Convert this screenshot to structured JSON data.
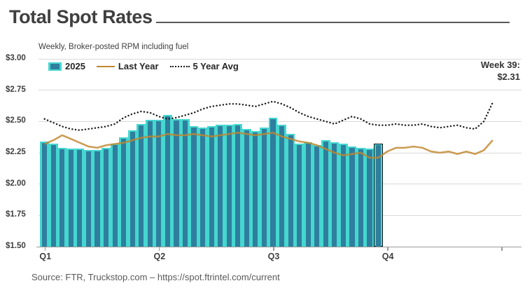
{
  "header": {
    "title": "Total Spot Rates"
  },
  "subtitle": "Weekly, Broker-posted RPM including fuel",
  "legend": {
    "items": [
      {
        "label": "2025",
        "swatch": "bar-swatch"
      },
      {
        "label": "Last Year",
        "swatch": "line-swatch"
      },
      {
        "label": "5 Year Avg",
        "swatch": "dotted-line-swatch"
      }
    ]
  },
  "callout": {
    "week_label": "Week 39:",
    "value": "$2.31"
  },
  "source": "Source: FTR, Truckstop.com – https://spot.ftrintel.com/current",
  "colors": {
    "bar": "#2F7E9D",
    "halo": "#45D7D0",
    "lastyear": "#C1882F",
    "fiveyr": "#1A1A1A",
    "grid": "#D9D9D9",
    "axis": "#9B9B9B"
  },
  "chart_data": {
    "type": "bar",
    "title": "Total Spot Rates",
    "subtitle": "Weekly, Broker-posted RPM including fuel",
    "x_unit": "week of year",
    "ylim": [
      1.5,
      3.0
    ],
    "grid": true,
    "legend_position": "top-left",
    "y_ticks": [
      {
        "label": "$3.00",
        "value": 3.0
      },
      {
        "label": "$2.75",
        "value": 2.75
      },
      {
        "label": "$2.50",
        "value": 2.5
      },
      {
        "label": "$2.25",
        "value": 2.25
      },
      {
        "label": "$2.00",
        "value": 2.0
      },
      {
        "label": "$1.75",
        "value": 1.75
      },
      {
        "label": "$1.50",
        "value": 1.5
      }
    ],
    "x_ticks": [
      {
        "label": "Q1",
        "week": 1
      },
      {
        "label": "Q2",
        "week": 14
      },
      {
        "label": "Q3",
        "week": 27
      },
      {
        "label": "Q4",
        "week": 40
      },
      {
        "label": "",
        "week": 53
      }
    ],
    "annotation": {
      "label": "Week 39:",
      "value": "$2.31",
      "week": 39
    },
    "series": [
      {
        "name": "2025",
        "type": "bar",
        "weeks": "1-39",
        "values": [
          2.33,
          2.31,
          2.28,
          2.27,
          2.27,
          2.26,
          2.26,
          2.28,
          2.31,
          2.36,
          2.42,
          2.47,
          2.5,
          2.5,
          2.54,
          2.51,
          2.51,
          2.45,
          2.44,
          2.45,
          2.46,
          2.46,
          2.47,
          2.43,
          2.41,
          2.44,
          2.52,
          2.46,
          2.39,
          2.31,
          2.32,
          2.3,
          2.34,
          2.32,
          2.31,
          2.29,
          2.28,
          2.27,
          2.31
        ]
      },
      {
        "name": "Last Year",
        "type": "line",
        "weeks": "1-52",
        "values": [
          2.32,
          2.35,
          2.39,
          2.36,
          2.33,
          2.3,
          2.29,
          2.31,
          2.32,
          2.33,
          2.35,
          2.37,
          2.38,
          2.38,
          2.4,
          2.39,
          2.39,
          2.4,
          2.39,
          2.38,
          2.39,
          2.4,
          2.41,
          2.4,
          2.39,
          2.4,
          2.41,
          2.38,
          2.36,
          2.34,
          2.33,
          2.31,
          2.28,
          2.25,
          2.23,
          2.24,
          2.25,
          2.21,
          2.21,
          2.26,
          2.29,
          2.29,
          2.3,
          2.29,
          2.26,
          2.25,
          2.26,
          2.24,
          2.26,
          2.24,
          2.27,
          2.35
        ]
      },
      {
        "name": "5 Year Avg",
        "type": "dotted-line",
        "weeks": "1-52",
        "values": [
          2.52,
          2.49,
          2.46,
          2.44,
          2.43,
          2.44,
          2.45,
          2.46,
          2.48,
          2.53,
          2.56,
          2.58,
          2.57,
          2.54,
          2.52,
          2.53,
          2.55,
          2.57,
          2.6,
          2.62,
          2.63,
          2.64,
          2.64,
          2.63,
          2.62,
          2.64,
          2.66,
          2.64,
          2.61,
          2.57,
          2.54,
          2.52,
          2.5,
          2.48,
          2.51,
          2.54,
          2.52,
          2.48,
          2.47,
          2.47,
          2.48,
          2.47,
          2.47,
          2.48,
          2.46,
          2.45,
          2.46,
          2.47,
          2.45,
          2.44,
          2.5,
          2.65
        ]
      }
    ]
  }
}
